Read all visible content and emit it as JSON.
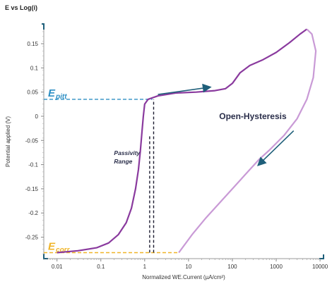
{
  "chart_data": {
    "type": "line",
    "title": "E vs Log(i)",
    "xlabel": "Normalized WE.Current (µA/cm²)",
    "ylabel": "Potential applied (V)",
    "x_scale": "log",
    "xlim": [
      0.005,
      12000
    ],
    "ylim": [
      -0.29,
      0.185
    ],
    "x_ticks": [
      0.01,
      0.1,
      1,
      10,
      100,
      1000,
      10000
    ],
    "x_tick_labels": [
      "0.01",
      "0.1",
      "1",
      "10",
      "100",
      "1000",
      "10000"
    ],
    "y_ticks": [
      0.15,
      0.1,
      0.05,
      0,
      -0.05,
      -0.1,
      -0.15,
      -0.2,
      -0.25
    ],
    "y_tick_labels": [
      "0.15",
      "0.1",
      "0.05",
      "0",
      "-0.05",
      "-0.1",
      "-0.15",
      "-0.2",
      "-0.25"
    ],
    "grid": false,
    "series": [
      {
        "color": "#8a3a9e",
        "points": [
          [
            0.01,
            -0.282
          ],
          [
            0.03,
            -0.278
          ],
          [
            0.08,
            -0.272
          ],
          [
            0.15,
            -0.262
          ],
          [
            0.25,
            -0.245
          ],
          [
            0.38,
            -0.22
          ],
          [
            0.5,
            -0.19
          ],
          [
            0.62,
            -0.15
          ],
          [
            0.72,
            -0.11
          ],
          [
            0.8,
            -0.07
          ],
          [
            0.87,
            -0.03
          ],
          [
            0.93,
            0.0
          ],
          [
            1.0,
            0.025
          ],
          [
            1.2,
            0.035
          ],
          [
            2,
            0.042
          ],
          [
            5,
            0.048
          ],
          [
            15,
            0.05
          ],
          [
            40,
            0.053
          ],
          [
            70,
            0.057
          ],
          [
            100,
            0.068
          ],
          [
            150,
            0.09
          ],
          [
            250,
            0.105
          ],
          [
            500,
            0.117
          ],
          [
            1000,
            0.132
          ],
          [
            2000,
            0.152
          ],
          [
            3500,
            0.17
          ],
          [
            5000,
            0.18
          ]
        ]
      },
      {
        "color": "#c99ad6",
        "points": [
          [
            5000,
            0.18
          ],
          [
            6500,
            0.17
          ],
          [
            8000,
            0.135
          ],
          [
            7000,
            0.08
          ],
          [
            5000,
            0.035
          ],
          [
            3000,
            -0.005
          ],
          [
            1500,
            -0.04
          ],
          [
            700,
            -0.07
          ],
          [
            400,
            -0.09
          ],
          [
            200,
            -0.12
          ],
          [
            100,
            -0.15
          ],
          [
            50,
            -0.18
          ],
          [
            25,
            -0.21
          ],
          [
            12,
            -0.245
          ],
          [
            6,
            -0.282
          ]
        ]
      }
    ],
    "reference_lines": [
      {
        "y": 0.035,
        "x_end": 1.5,
        "color": "#2e8fc4",
        "label_main": "E",
        "label_sub": "pitt"
      },
      {
        "y": -0.282,
        "x_end": 6,
        "color": "#f0b428",
        "label_main": "E",
        "label_sub": "corr"
      }
    ],
    "vertical_lines": [
      {
        "x": 1.3,
        "y_from": -0.282,
        "y_to": -0.04,
        "color": "#1a1a2e"
      },
      {
        "x": 1.6,
        "y_from": -0.282,
        "y_to": 0.035,
        "color": "#1a1a2e"
      }
    ],
    "arrows": [
      {
        "from": [
          2,
          0.045
        ],
        "to": [
          30,
          0.06
        ],
        "color": "#1f5f7a"
      },
      {
        "from": [
          2500,
          -0.03
        ],
        "to": [
          400,
          -0.1
        ],
        "color": "#1f5f7a"
      }
    ],
    "annotations": [
      {
        "text": "Passivity Range",
        "lines": [
          "Passivity",
          "Range"
        ],
        "x": 0.2,
        "y": -0.08,
        "color": "#2a2e4a",
        "italic": true
      },
      {
        "text": "Open-Hysteresis",
        "x": 50,
        "y": 0.0,
        "color": "#2a2e4a",
        "italic": false
      }
    ]
  }
}
